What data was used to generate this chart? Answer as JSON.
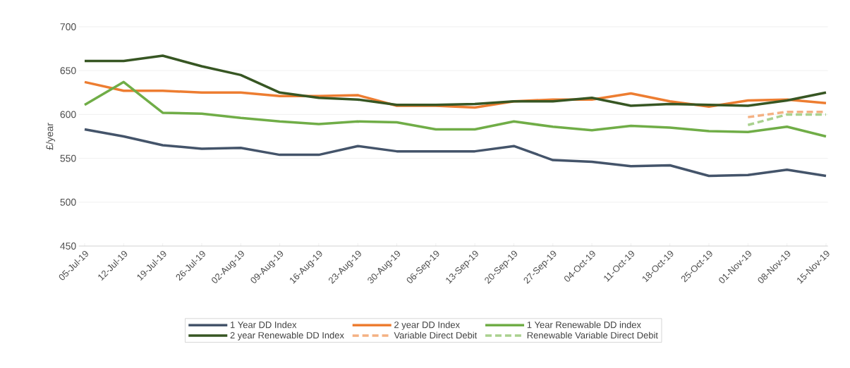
{
  "chart_data": {
    "type": "line",
    "ylabel": "£/year",
    "categories": [
      "05-Jul-19",
      "12-Jul-19",
      "19-Jul-19",
      "26-Jul-19",
      "02-Aug-19",
      "09-Aug-19",
      "16-Aug-19",
      "23-Aug-19",
      "30-Aug-19",
      "06-Sep-19",
      "13-Sep-19",
      "20-Sep-19",
      "27-Sep-19",
      "04-Oct-19",
      "11-Oct-19",
      "18-Oct-19",
      "25-Oct-19",
      "01-Nov-19",
      "08-Nov-19",
      "15-Nov-19"
    ],
    "series": [
      {
        "name": "1 Year DD Index",
        "color": "#44546a",
        "line_style": "solid",
        "values": [
          583,
          575,
          565,
          561,
          562,
          554,
          554,
          564,
          558,
          558,
          558,
          564,
          548,
          546,
          541,
          542,
          530,
          531,
          537,
          530
        ]
      },
      {
        "name": "2 year DD Index",
        "color": "#ed7d31",
        "line_style": "solid",
        "values": [
          637,
          627,
          627,
          625,
          625,
          621,
          621,
          622,
          610,
          610,
          608,
          615,
          617,
          617,
          624,
          615,
          609,
          616,
          617,
          613
        ]
      },
      {
        "name": "1 Year Renewable DD index",
        "color": "#70ad47",
        "line_style": "solid",
        "values": [
          611,
          637,
          602,
          601,
          596,
          592,
          589,
          592,
          591,
          583,
          583,
          592,
          586,
          582,
          587,
          585,
          581,
          580,
          586,
          575
        ]
      },
      {
        "name": "2 year Renewable DD Index",
        "color": "#375623",
        "line_style": "solid",
        "values": [
          661,
          661,
          667,
          655,
          645,
          625,
          619,
          617,
          611,
          611,
          612,
          615,
          615,
          619,
          610,
          612,
          611,
          610,
          616,
          625
        ]
      },
      {
        "name": "Variable Direct Debit",
        "color": "#f4b183",
        "line_style": "dashed",
        "values": [
          null,
          null,
          null,
          null,
          null,
          null,
          null,
          null,
          null,
          null,
          null,
          null,
          null,
          null,
          null,
          null,
          null,
          597,
          603,
          603
        ]
      },
      {
        "name": "Renewable Variable Direct Debit",
        "color": "#a9d18e",
        "line_style": "dashed",
        "values": [
          null,
          null,
          null,
          null,
          null,
          null,
          null,
          null,
          null,
          null,
          null,
          null,
          null,
          null,
          null,
          null,
          null,
          588,
          600,
          600
        ]
      }
    ],
    "ylim": [
      450,
      700
    ],
    "yticks": [
      450,
      500,
      550,
      600,
      650,
      700
    ],
    "grid": "y",
    "legend": "bottom",
    "marker": "none"
  }
}
